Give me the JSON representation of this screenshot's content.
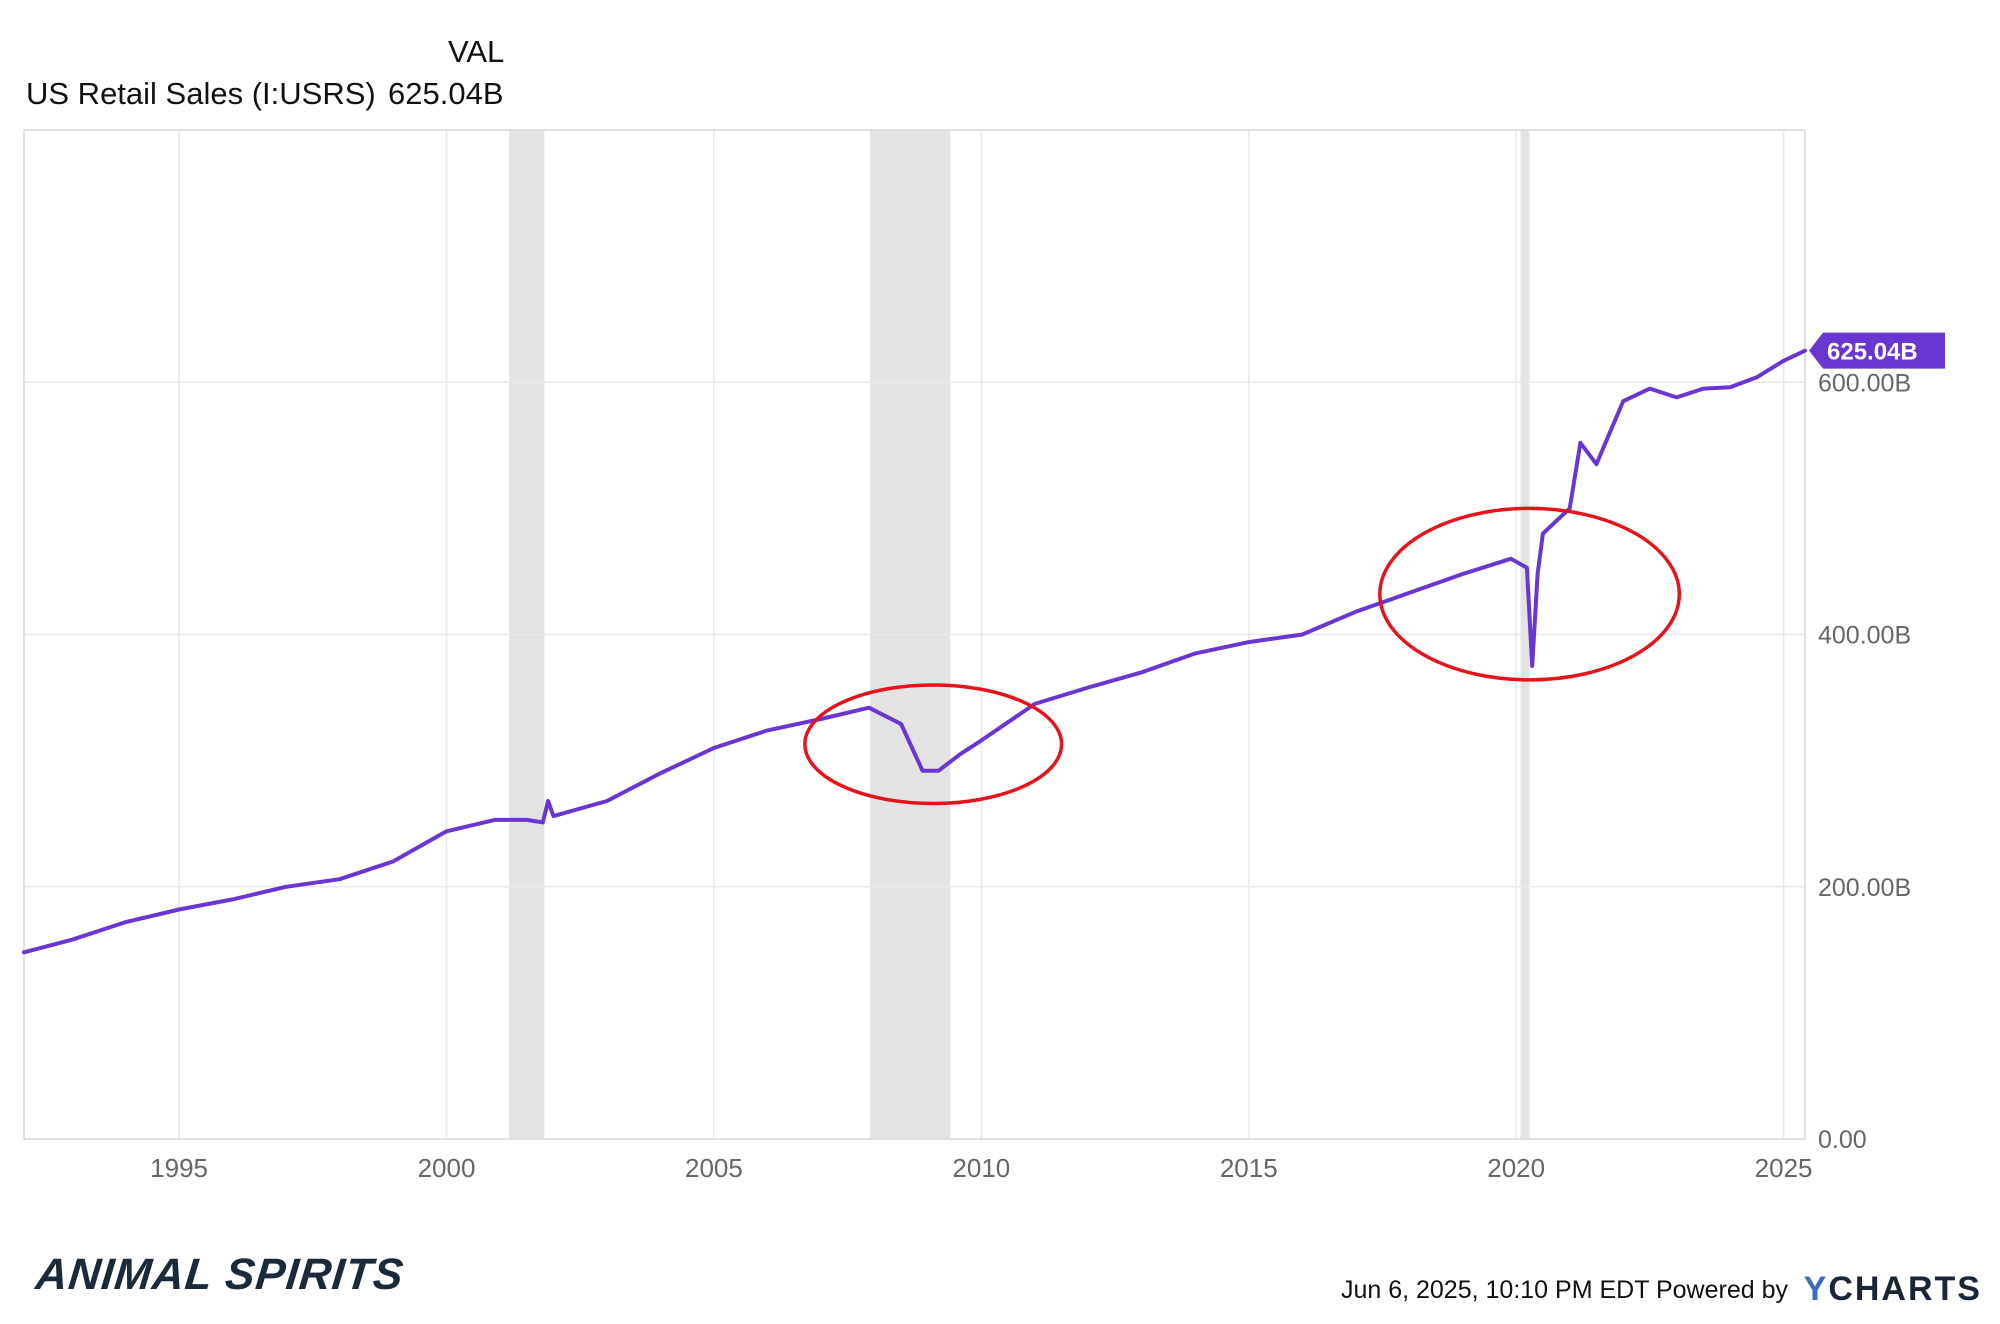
{
  "legend": {
    "header": "VAL",
    "series_name": "US Retail Sales (I:USRS)",
    "series_value": "625.04B"
  },
  "footer": {
    "timestamp": "Jun 6, 2025, 10:10 PM EDT",
    "powered_by": "Powered by",
    "brand_y": "Y",
    "brand_rest": "CHARTS",
    "logo_text": "ANIMAL SPIRITS"
  },
  "colors": {
    "line": "#6a36d1",
    "recession": "#e3e3e3",
    "grid": "#e8e8e8",
    "annotation": "#e5141c",
    "badge": "#6a36d1"
  },
  "chart_data": {
    "type": "line",
    "title": "",
    "xlabel": "",
    "ylabel": "",
    "ylim": [
      0,
      800
    ],
    "xlim": [
      1992.1,
      2025.4
    ],
    "x_ticks": [
      1995,
      2000,
      2005,
      2010,
      2015,
      2020,
      2025
    ],
    "x_tick_labels": [
      "1995",
      "2000",
      "2005",
      "2010",
      "2015",
      "2020",
      "2025"
    ],
    "y_ticks": [
      0,
      200,
      400,
      600
    ],
    "y_tick_labels": [
      "0.00",
      "200.00B",
      "400.00B",
      "600.00B"
    ],
    "grid": true,
    "last_value": 625.04,
    "last_value_label": "625.04B",
    "recessions": [
      [
        2001.17,
        2001.83
      ],
      [
        2007.92,
        2009.42
      ],
      [
        2020.08,
        2020.25
      ]
    ],
    "annotations": [
      {
        "shape": "ellipse",
        "cx": 2009.1,
        "cy": 313,
        "rx_years": 4.8,
        "ry_units": 47
      },
      {
        "shape": "ellipse",
        "cx": 2020.25,
        "cy": 432,
        "rx_years": 5.6,
        "ry_units": 68
      }
    ],
    "series": [
      {
        "name": "US Retail Sales (I:USRS)",
        "x": [
          1992.1,
          1993,
          1994,
          1995,
          1996,
          1997,
          1998,
          1999,
          2000,
          2000.9,
          2001.5,
          2001.8,
          2001.9,
          2002,
          2003,
          2004,
          2005,
          2006,
          2007,
          2007.9,
          2008.5,
          2008.9,
          2009.2,
          2009.6,
          2010,
          2011,
          2012,
          2013,
          2014,
          2015,
          2016,
          2017,
          2018,
          2019,
          2019.9,
          2020.2,
          2020.3,
          2020.4,
          2020.5,
          2021,
          2021.2,
          2021.5,
          2022,
          2022.5,
          2023,
          2023.5,
          2024,
          2024.5,
          2025,
          2025.4
        ],
        "values": [
          148,
          158,
          172,
          182,
          190,
          200,
          206,
          220,
          244,
          253,
          253,
          251,
          268,
          256,
          268,
          290,
          310,
          324,
          333,
          342,
          329,
          292,
          292,
          305,
          316,
          345,
          358,
          370,
          385,
          394,
          400,
          418,
          433,
          448,
          460,
          453,
          375,
          448,
          480,
          500,
          552,
          535,
          585,
          595,
          588,
          595,
          596,
          604,
          617,
          625.04
        ]
      }
    ]
  }
}
